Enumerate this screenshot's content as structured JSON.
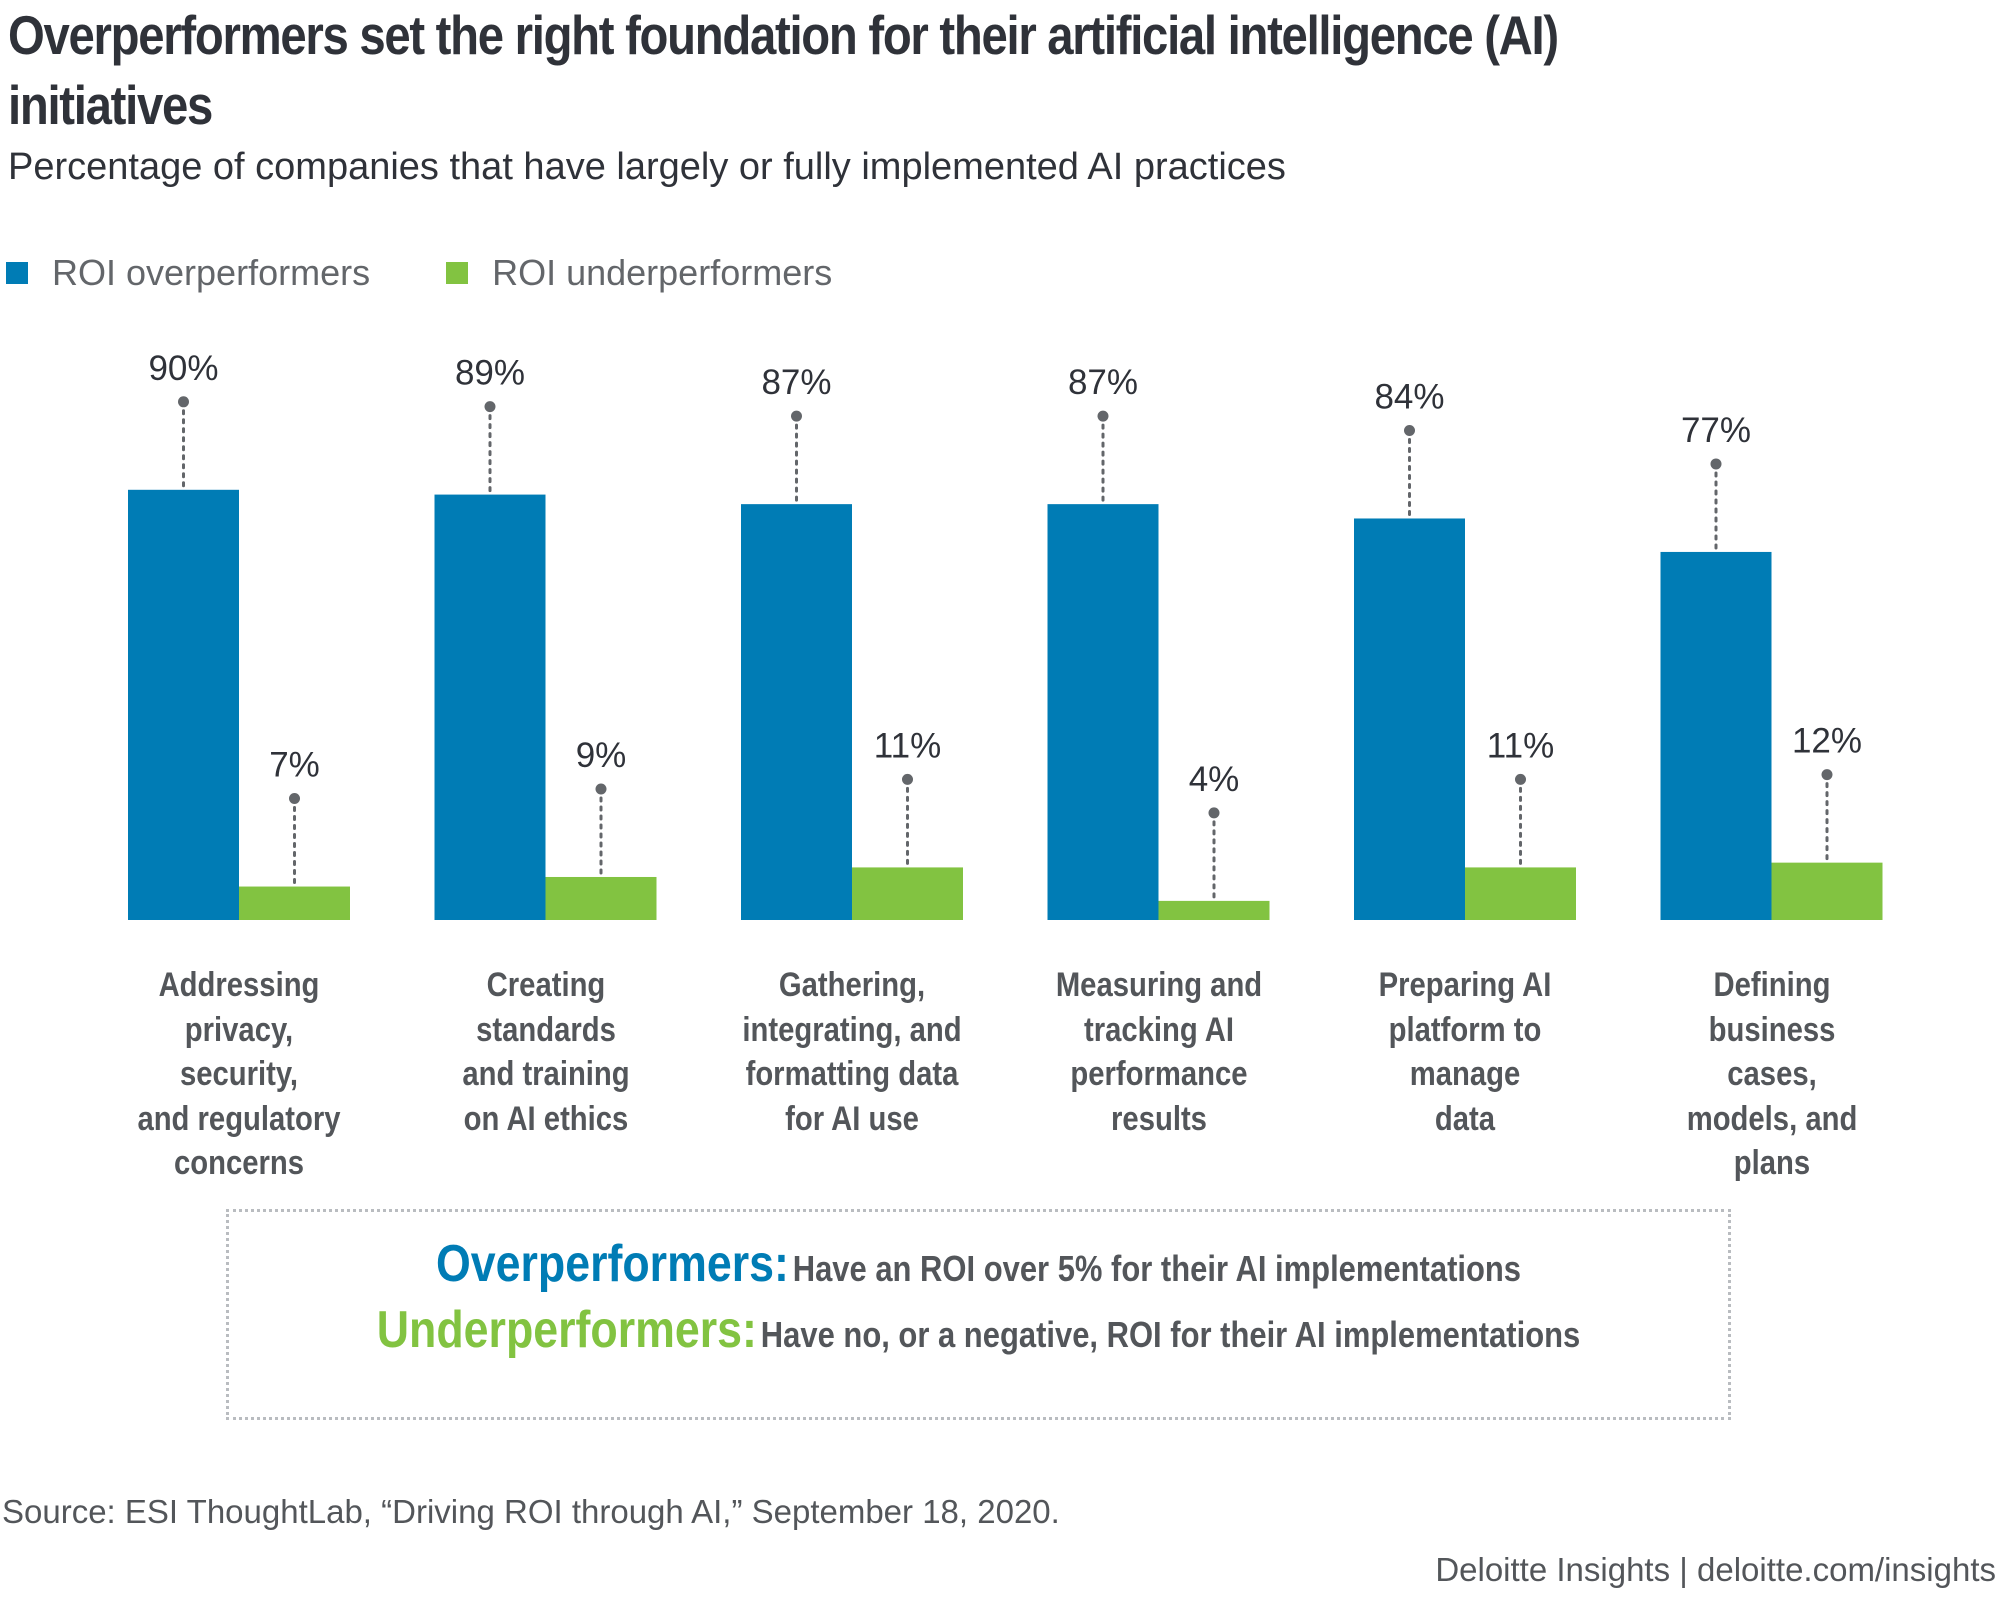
{
  "header": {
    "title": "Overperformers set the right foundation for their artificial intelligence (AI) initiatives",
    "subtitle": "Percentage of companies that have largely or fully implemented AI practices"
  },
  "legend": [
    {
      "label": "ROI overperformers",
      "color": "#007cb5"
    },
    {
      "label": "ROI underperformers",
      "color": "#82c341"
    }
  ],
  "chart_data": {
    "type": "bar",
    "title": "Overperformers set the right foundation for their artificial intelligence (AI) initiatives",
    "subtitle": "Percentage of companies that have largely or fully implemented AI practices",
    "xlabel": "",
    "ylabel": "",
    "ylim": [
      0,
      100
    ],
    "grid": false,
    "legend_position": "top-left",
    "value_suffix": "%",
    "categories": [
      "Addressing privacy, security, and regulatory concerns",
      "Creating standards and training on AI ethics",
      "Gathering, integrating, and formatting data for AI use",
      "Measuring and tracking AI performance results",
      "Preparing AI platform to manage data",
      "Defining business cases, models, and plans"
    ],
    "category_label_lines": [
      [
        "Addressing",
        "privacy, security,",
        "and regulatory",
        "concerns"
      ],
      [
        "Creating",
        "standards",
        "and training",
        "on AI ethics"
      ],
      [
        "Gathering,",
        "integrating, and",
        "formatting data",
        "for AI use"
      ],
      [
        "Measuring and",
        "tracking AI",
        "performance",
        "results"
      ],
      [
        "Preparing AI",
        "platform to",
        "manage",
        "data"
      ],
      [
        "Defining",
        "business cases,",
        "models, and",
        "plans"
      ]
    ],
    "series": [
      {
        "name": "ROI overperformers",
        "color": "#007cb5",
        "values": [
          90,
          89,
          87,
          87,
          84,
          77
        ]
      },
      {
        "name": "ROI underperformers",
        "color": "#82c341",
        "values": [
          7,
          9,
          11,
          4,
          11,
          12
        ]
      }
    ]
  },
  "definitions": [
    {
      "term": "Overperformers:",
      "text": "Have an ROI over 5% for their AI implementations",
      "color": "#007cb5"
    },
    {
      "term": "Underperformers:",
      "text": "Have no, or a negative, ROI for their AI implementations",
      "color": "#82c341"
    }
  ],
  "footer": {
    "source": "Source: ESI ThoughtLab, “Driving ROI through AI,” September 18, 2020.",
    "brand": "Deloitte Insights | deloitte.com/insights"
  }
}
